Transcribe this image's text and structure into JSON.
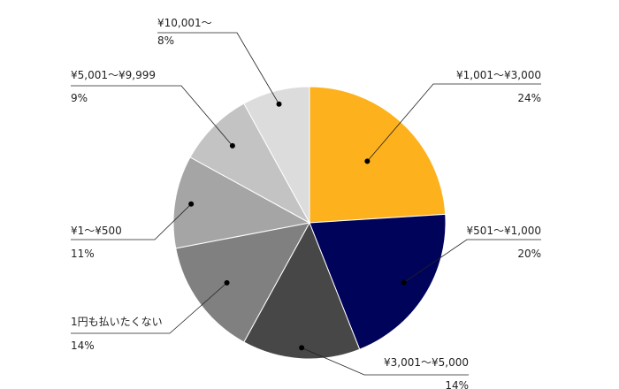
{
  "chart_data": {
    "type": "pie",
    "title": "",
    "start": "12 o'clock",
    "direction": "clockwise",
    "slices": [
      {
        "label": "¥1,001〜¥3,000",
        "value": 24,
        "value_label": "24%",
        "color": "#FDB11D"
      },
      {
        "label": "¥501〜¥1,000",
        "value": 20,
        "value_label": "20%",
        "color": "#00035A"
      },
      {
        "label": "¥3,001〜¥5,000",
        "value": 14,
        "value_label": "14%",
        "color": "#474747"
      },
      {
        "label": "1円も払いたくない",
        "value": 14,
        "value_label": "14%",
        "color": "#808080"
      },
      {
        "label": "¥1〜¥500",
        "value": 11,
        "value_label": "11%",
        "color": "#A5A5A5"
      },
      {
        "label": "¥5,001〜¥9,999",
        "value": 9,
        "value_label": "9%",
        "color": "#C3C3C3"
      },
      {
        "label": "¥10,001〜",
        "value": 8,
        "value_label": "8%",
        "color": "#DCDCDC"
      }
    ],
    "legend": "none",
    "label_style": "leader lines with category and percentage"
  }
}
